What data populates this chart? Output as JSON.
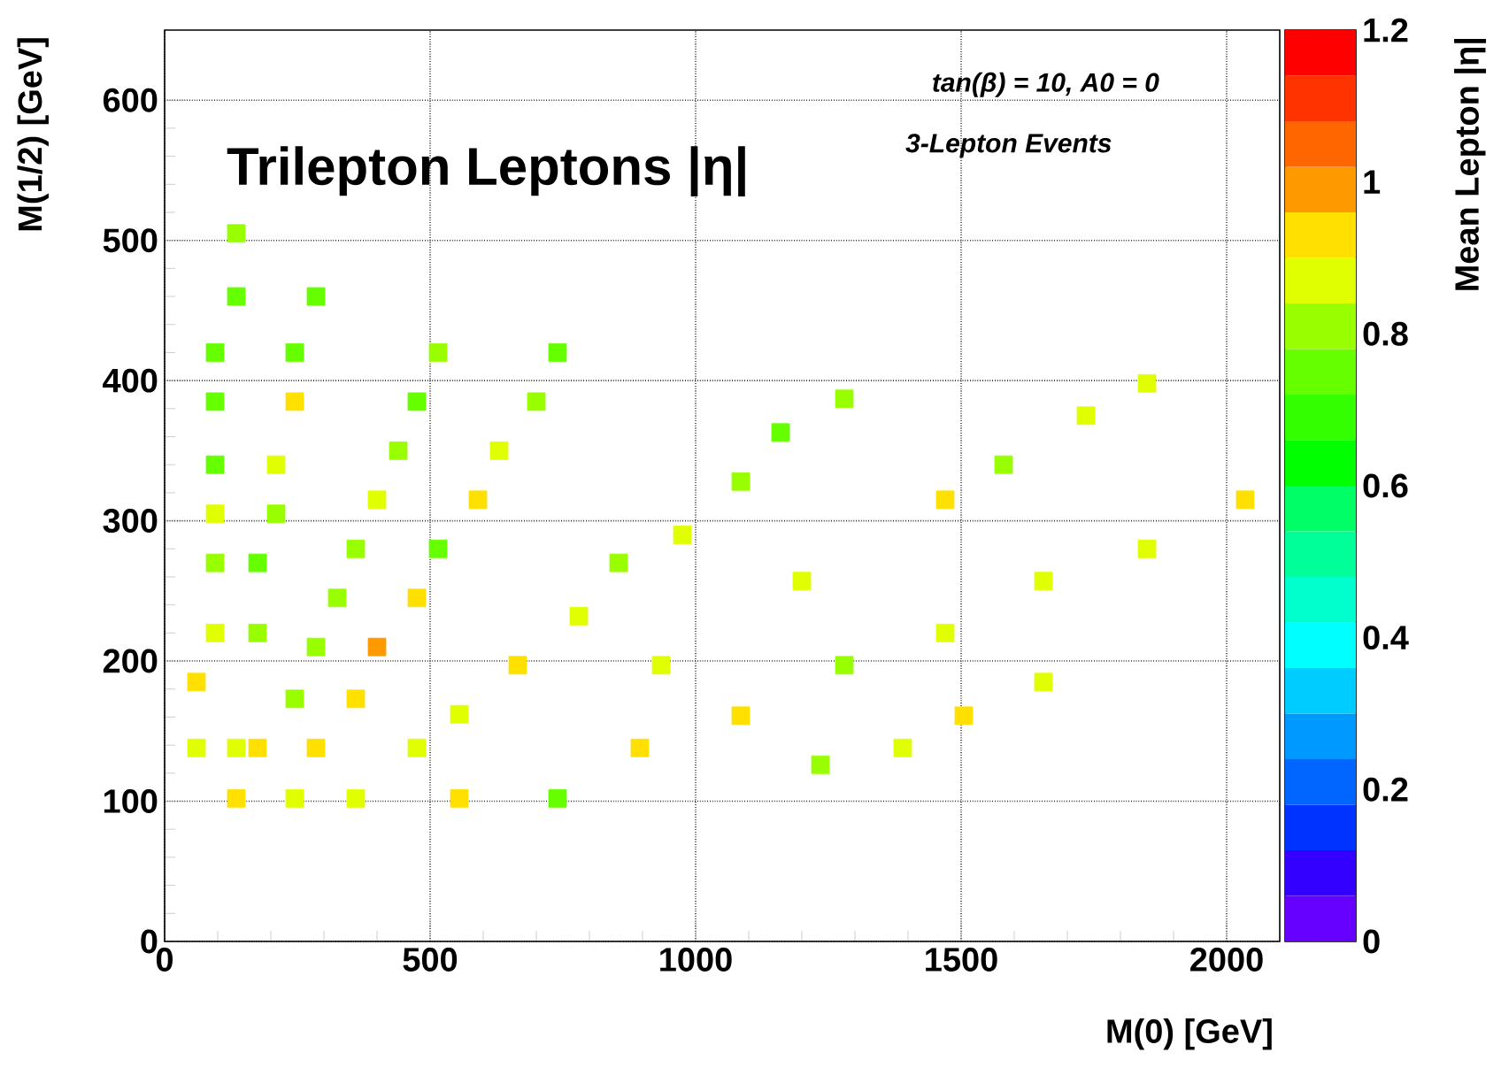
{
  "chart_data": {
    "type": "scatter",
    "title": "Trilepton Leptons |η|",
    "xlabel": "M(0) [GeV]",
    "ylabel": "M(1/2) [GeV]",
    "clabel": "Mean Lepton |η|",
    "annotations": [
      "tan(β) = 10, A0 = 0",
      "3-Lepton Events"
    ],
    "x": [
      135,
      135,
      285,
      95,
      245,
      515,
      740,
      95,
      245,
      475,
      700,
      440,
      630,
      95,
      210,
      400,
      590,
      95,
      210,
      975,
      360,
      515,
      95,
      175,
      855,
      325,
      475,
      780,
      95,
      175,
      285,
      400,
      665,
      935,
      60,
      245,
      360,
      555,
      60,
      135,
      175,
      285,
      475,
      895,
      135,
      245,
      360,
      555,
      740,
      1280,
      1160,
      1085,
      1470,
      1850,
      1735,
      1580,
      2035,
      1200,
      1655,
      1850,
      1470,
      1280,
      1655,
      1085,
      1505,
      1390,
      1235
    ],
    "values": [
      505,
      460,
      460,
      420,
      420,
      420,
      420,
      385,
      385,
      385,
      385,
      350,
      350,
      340,
      340,
      315,
      315,
      305,
      305,
      290,
      280,
      280,
      270,
      270,
      270,
      245,
      245,
      232,
      220,
      220,
      210,
      210,
      197,
      197,
      185,
      173,
      173,
      162,
      138,
      138,
      138,
      138,
      138,
      138,
      102,
      102,
      102,
      102,
      102,
      387,
      363,
      328,
      315,
      398,
      375,
      340,
      315,
      257,
      257,
      280,
      220,
      197,
      185,
      161,
      161,
      138,
      126
    ],
    "cvalues": [
      0.81,
      0.75,
      0.75,
      0.75,
      0.75,
      0.81,
      0.75,
      0.75,
      0.93,
      0.75,
      0.81,
      0.81,
      0.87,
      0.75,
      0.87,
      0.87,
      0.93,
      0.87,
      0.81,
      0.87,
      0.81,
      0.75,
      0.81,
      0.75,
      0.81,
      0.81,
      0.93,
      0.87,
      0.87,
      0.81,
      0.81,
      0.99,
      0.93,
      0.87,
      0.93,
      0.81,
      0.93,
      0.87,
      0.87,
      0.87,
      0.93,
      0.93,
      0.87,
      0.93,
      0.93,
      0.87,
      0.87,
      0.93,
      0.75,
      0.81,
      0.75,
      0.81,
      0.93,
      0.87,
      0.87,
      0.81,
      0.93,
      0.87,
      0.87,
      0.87,
      0.87,
      0.81,
      0.87,
      0.93,
      0.93,
      0.87,
      0.81
    ],
    "xlim": [
      0,
      2100
    ],
    "ylim": [
      0,
      650
    ],
    "xticks": [
      0,
      500,
      1000,
      1500,
      2000
    ],
    "yticks": [
      0,
      100,
      200,
      300,
      400,
      500,
      600
    ],
    "clim": [
      0,
      1.2
    ],
    "cticks": [
      0,
      0.2,
      0.4,
      0.6,
      0.8,
      1,
      1.2
    ],
    "grid": true,
    "marker": "square"
  }
}
